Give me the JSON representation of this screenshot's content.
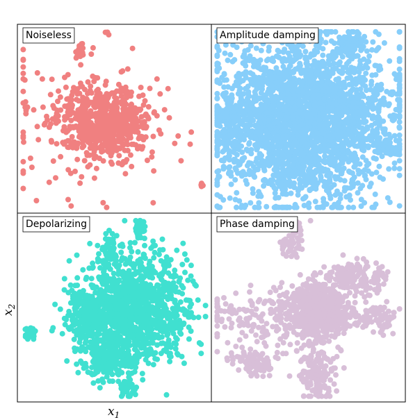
{
  "chart_data": {
    "type": "scatter",
    "layout": "2x2 grid, shared axes, no ticks",
    "xlabel": "x",
    "xlabel_sub": "1",
    "ylabel": "x",
    "ylabel_sub": "2",
    "grid": false,
    "legend": "none",
    "panels": [
      {
        "title": "Noiseless",
        "color": "#F08080",
        "clusters": [
          {
            "cx": 0.45,
            "cy": 0.52,
            "sx": 0.12,
            "sy": 0.09,
            "n": 650
          },
          {
            "cx": 0.3,
            "cy": 0.55,
            "sx": 0.25,
            "sy": 0.22,
            "n": 120
          },
          {
            "cx": 0.32,
            "cy": 0.14,
            "sx": 0.01,
            "sy": 0.02,
            "n": 25
          },
          {
            "cx": 0.46,
            "cy": 0.05,
            "sx": 0.005,
            "sy": 0.005,
            "n": 4
          },
          {
            "cx": 0.95,
            "cy": 0.85,
            "sx": 0.005,
            "sy": 0.005,
            "n": 6
          },
          {
            "cx": 0.05,
            "cy": 0.44,
            "sx": 0.005,
            "sy": 0.005,
            "n": 4
          }
        ]
      },
      {
        "title": "Amplitude damping",
        "color": "#87CEFA",
        "clusters": [
          {
            "cx": 0.48,
            "cy": 0.5,
            "sx": 0.22,
            "sy": 0.22,
            "n": 2600
          },
          {
            "cx": 0.72,
            "cy": 0.1,
            "sx": 0.03,
            "sy": 0.03,
            "n": 80
          },
          {
            "cx": 0.9,
            "cy": 0.65,
            "sx": 0.04,
            "sy": 0.02,
            "n": 60
          },
          {
            "cx": 0.1,
            "cy": 0.55,
            "sx": 0.04,
            "sy": 0.1,
            "n": 120
          }
        ]
      },
      {
        "title": "Depolarizing",
        "color": "#40E0D0",
        "clusters": [
          {
            "cx": 0.6,
            "cy": 0.5,
            "sx": 0.14,
            "sy": 0.14,
            "n": 1200
          },
          {
            "cx": 0.47,
            "cy": 0.77,
            "sx": 0.07,
            "sy": 0.05,
            "n": 200
          },
          {
            "cx": 0.57,
            "cy": 0.94,
            "sx": 0.02,
            "sy": 0.03,
            "n": 40
          },
          {
            "cx": 0.63,
            "cy": 0.08,
            "sx": 0.015,
            "sy": 0.03,
            "n": 40
          },
          {
            "cx": 0.48,
            "cy": 0.18,
            "sx": 0.02,
            "sy": 0.03,
            "n": 40
          },
          {
            "cx": 0.07,
            "cy": 0.63,
            "sx": 0.015,
            "sy": 0.015,
            "n": 40
          },
          {
            "cx": 0.35,
            "cy": 0.55,
            "sx": 0.05,
            "sy": 0.07,
            "n": 150
          }
        ]
      },
      {
        "title": "Phase damping",
        "color": "#D8BFD8",
        "clusters": [
          {
            "cx": 0.55,
            "cy": 0.52,
            "sx": 0.07,
            "sy": 0.07,
            "n": 700
          },
          {
            "cx": 0.3,
            "cy": 0.55,
            "sx": 0.18,
            "sy": 0.08,
            "n": 200
          },
          {
            "cx": 0.75,
            "cy": 0.35,
            "sx": 0.08,
            "sy": 0.05,
            "n": 150
          },
          {
            "cx": 0.55,
            "cy": 0.85,
            "sx": 0.05,
            "sy": 0.07,
            "n": 150
          },
          {
            "cx": 0.42,
            "cy": 0.12,
            "sx": 0.03,
            "sy": 0.06,
            "n": 60
          },
          {
            "cx": 0.85,
            "cy": 0.55,
            "sx": 0.06,
            "sy": 0.04,
            "n": 80
          },
          {
            "cx": 0.2,
            "cy": 0.78,
            "sx": 0.05,
            "sy": 0.04,
            "n": 80
          }
        ]
      }
    ]
  }
}
